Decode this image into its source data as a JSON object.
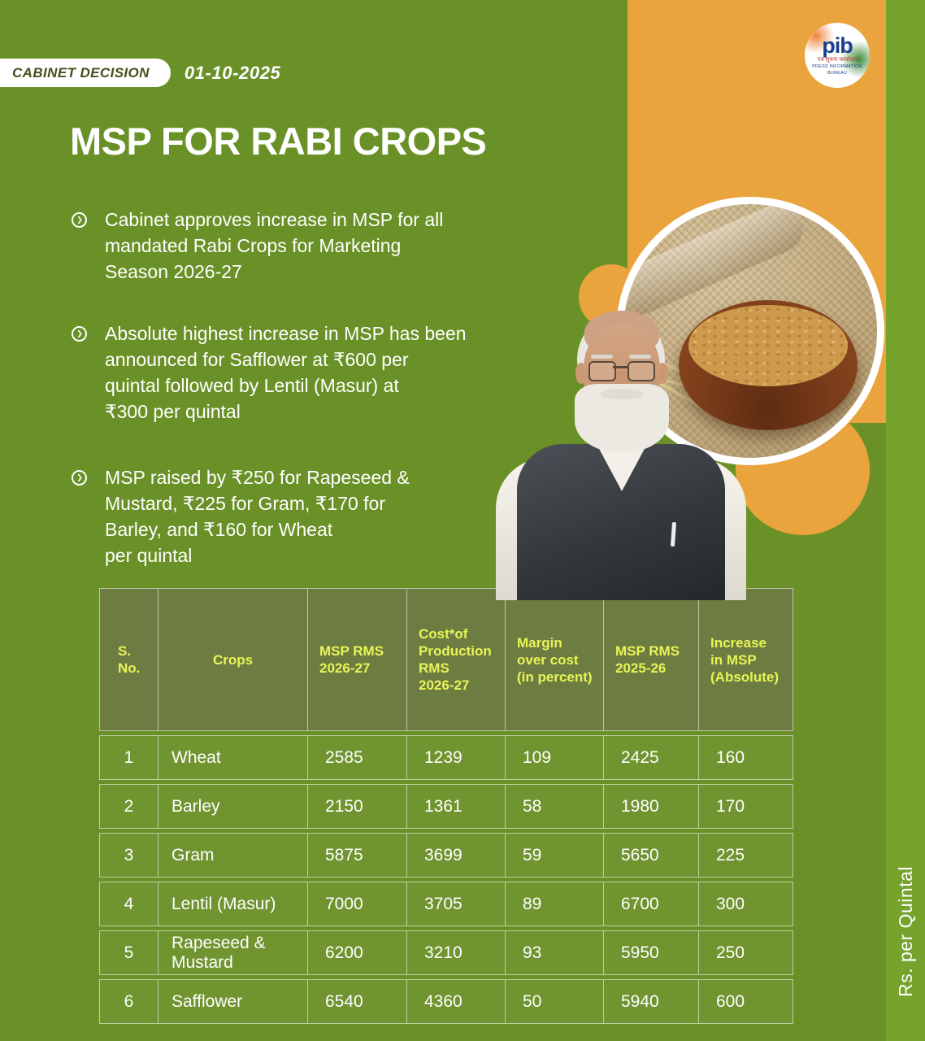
{
  "theme": {
    "background": "#6a9127",
    "right_strip": "#76a32c",
    "accent_orange": "#e9a43e",
    "table_header_text": "#e7f457",
    "table_header_bg": "#6d7d41",
    "table_row_bg": "#70942f",
    "text": "#ffffff",
    "badge_text": "#44511d",
    "pib_blue": "#1c3e8e"
  },
  "topbar": {
    "badge": "CABINET DECISION",
    "date": "01-10-2025"
  },
  "logo": {
    "text": "pib",
    "hindi": "पत्र सूचना कार्यालय",
    "english": "PRESS INFORMATION BUREAU"
  },
  "title": "MSP FOR RABI CROPS",
  "bullets": [
    {
      "text": "Cabinet approves increase in MSP for all\nmandated Rabi Crops for Marketing\nSeason 2026-27"
    },
    {
      "text": "Absolute highest increase in MSP has been\nannounced for Safflower at ₹600 per\nquintal followed by Lentil (Masur) at\n₹300 per quintal"
    },
    {
      "text": "MSP raised by ₹250 for Rapeseed &\nMustard, ₹225 for Gram, ₹170 for\nBarley, and ₹160 for Wheat\nper quintal"
    }
  ],
  "table": {
    "columns": [
      "S.\nNo.",
      "Crops",
      "MSP RMS\n2026-27",
      "Cost*of\nProduction\nRMS\n2026-27",
      "Margin\nover cost\n(in percent)",
      "MSP RMS\n2025-26",
      "Increase\nin MSP\n(Absolute)"
    ],
    "rows": [
      [
        "1",
        "Wheat",
        "2585",
        "1239",
        "109",
        "2425",
        "160"
      ],
      [
        "2",
        "Barley",
        "2150",
        "1361",
        "58",
        "1980",
        "170"
      ],
      [
        "3",
        "Gram",
        "5875",
        "3699",
        "59",
        "5650",
        "225"
      ],
      [
        "4",
        "Lentil (Masur)",
        "7000",
        "3705",
        "89",
        "6700",
        "300"
      ],
      [
        "5",
        "Rapeseed &\nMustard",
        "6200",
        "3210",
        "93",
        "5950",
        "250"
      ],
      [
        "6",
        "Safflower",
        "6540",
        "4360",
        "50",
        "5940",
        "600"
      ]
    ]
  },
  "side_label": "Rs. per Quintal"
}
